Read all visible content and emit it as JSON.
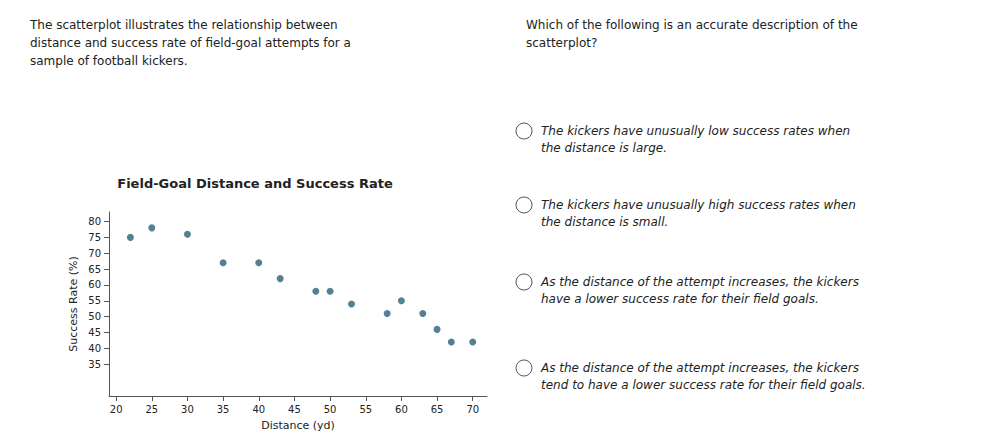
{
  "chart_data": {
    "type": "scatter",
    "title": "Field-Goal Distance and Success Rate",
    "xlabel": "Distance (yd)",
    "ylabel": "Success Rate (%)",
    "x": [
      22,
      25,
      30,
      35,
      40,
      43,
      48,
      50,
      53,
      58,
      60,
      63,
      65,
      67,
      70
    ],
    "values": [
      75,
      78,
      76,
      67,
      67,
      62,
      58,
      58,
      54,
      51,
      55,
      51,
      46,
      42,
      42
    ],
    "color": "#2a5f7a",
    "xlim": [
      19,
      72
    ],
    "ylim": [
      25,
      83
    ],
    "xticks": [
      20,
      25,
      30,
      35,
      40,
      45,
      50,
      55,
      60,
      65,
      70
    ],
    "yticks": [
      35,
      40,
      45,
      50,
      55,
      60,
      65,
      70,
      75,
      80
    ],
    "grid": false,
    "annotations": [
      "The scatterplot illustrates the relationship between\ndistance and success rate of field-goal attempts for a\nsample of football kickers.",
      "Which of the following is an accurate description of the\nscatterplot?",
      "The kickers have unusually low success rates when\nthe distance is large.",
      "The kickers have unusually high success rates when\nthe distance is small.",
      "As the distance of the attempt increases, the kickers\nhave a lower success rate for their field goals.",
      "As the distance of the attempt increases, the kickers\ntend to have a lower success rate for their field goals."
    ]
  }
}
